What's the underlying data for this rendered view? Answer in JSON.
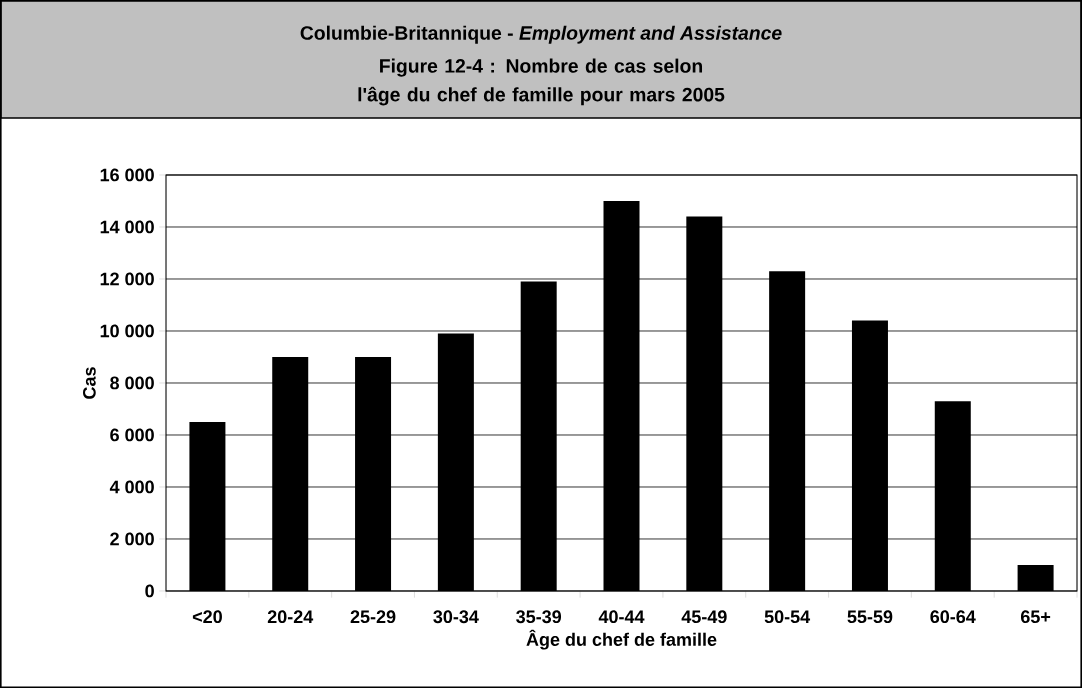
{
  "chart_data": {
    "type": "bar",
    "title": "Columbie-Britannique - *Employment and Assistance*",
    "subtitle": "Figure 12-4 : Nombre de cas selon l'âge du chef de famille pour mars 2005",
    "xlabel": "Âge du chef de famille",
    "ylabel": "Cas",
    "categories": [
      "<20",
      "20-24",
      "25-29",
      "30-34",
      "35-39",
      "40-44",
      "45-49",
      "50-54",
      "55-59",
      "60-64",
      "65+"
    ],
    "values": [
      6500,
      9000,
      9000,
      9900,
      11900,
      15000,
      14400,
      12300,
      10400,
      7300,
      1000
    ],
    "color": "#000000",
    "ylim": [
      0,
      16000
    ],
    "yticks": [
      0,
      {
        "value": 2000,
        "label": "2 000"
      },
      {
        "value": 4000,
        "label": "4 000"
      },
      {
        "value": 6000,
        "label": "6 000"
      },
      {
        "value": 8000,
        "label": "8 000"
      },
      {
        "value": 10000,
        "label": "10 000"
      },
      {
        "value": 12000,
        "label": "12 000"
      },
      {
        "value": 14000,
        "label": "14 000"
      },
      {
        "value": 16000,
        "label": "16 000"
      }
    ],
    "grid": "y"
  }
}
